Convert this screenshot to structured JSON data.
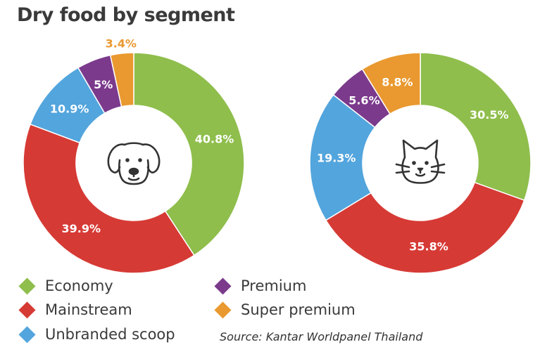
{
  "title": "Dry food by segment",
  "source": "Source: Kantar Worldpanel Thailand",
  "colors": {
    "Economy": "#8fbe4c",
    "Mainstream": "#d63a35",
    "Unbranded scoop": "#53a5dd",
    "Premium": "#7b3a8c",
    "Super premium": "#e9992f"
  },
  "legend": [
    "Economy",
    "Mainstream",
    "Unbranded scoop",
    "Premium",
    "Super premium"
  ],
  "chart_data": [
    {
      "type": "pie",
      "subtype": "donut",
      "center_icon": "dog-icon",
      "categories": [
        "Economy",
        "Mainstream",
        "Unbranded scoop",
        "Premium",
        "Super premium"
      ],
      "values": [
        40.8,
        39.9,
        10.9,
        5,
        3.4
      ],
      "labels": [
        "40.8%",
        "39.9%",
        "10.9%",
        "5%",
        "3.4%"
      ]
    },
    {
      "type": "pie",
      "subtype": "donut",
      "center_icon": "cat-icon",
      "categories": [
        "Economy",
        "Mainstream",
        "Unbranded scoop",
        "Premium",
        "Super premium"
      ],
      "values": [
        30.5,
        35.8,
        19.3,
        5.6,
        8.8
      ],
      "labels": [
        "30.5%",
        "35.8%",
        "19.3%",
        "5.6%",
        "8.8%"
      ]
    }
  ]
}
